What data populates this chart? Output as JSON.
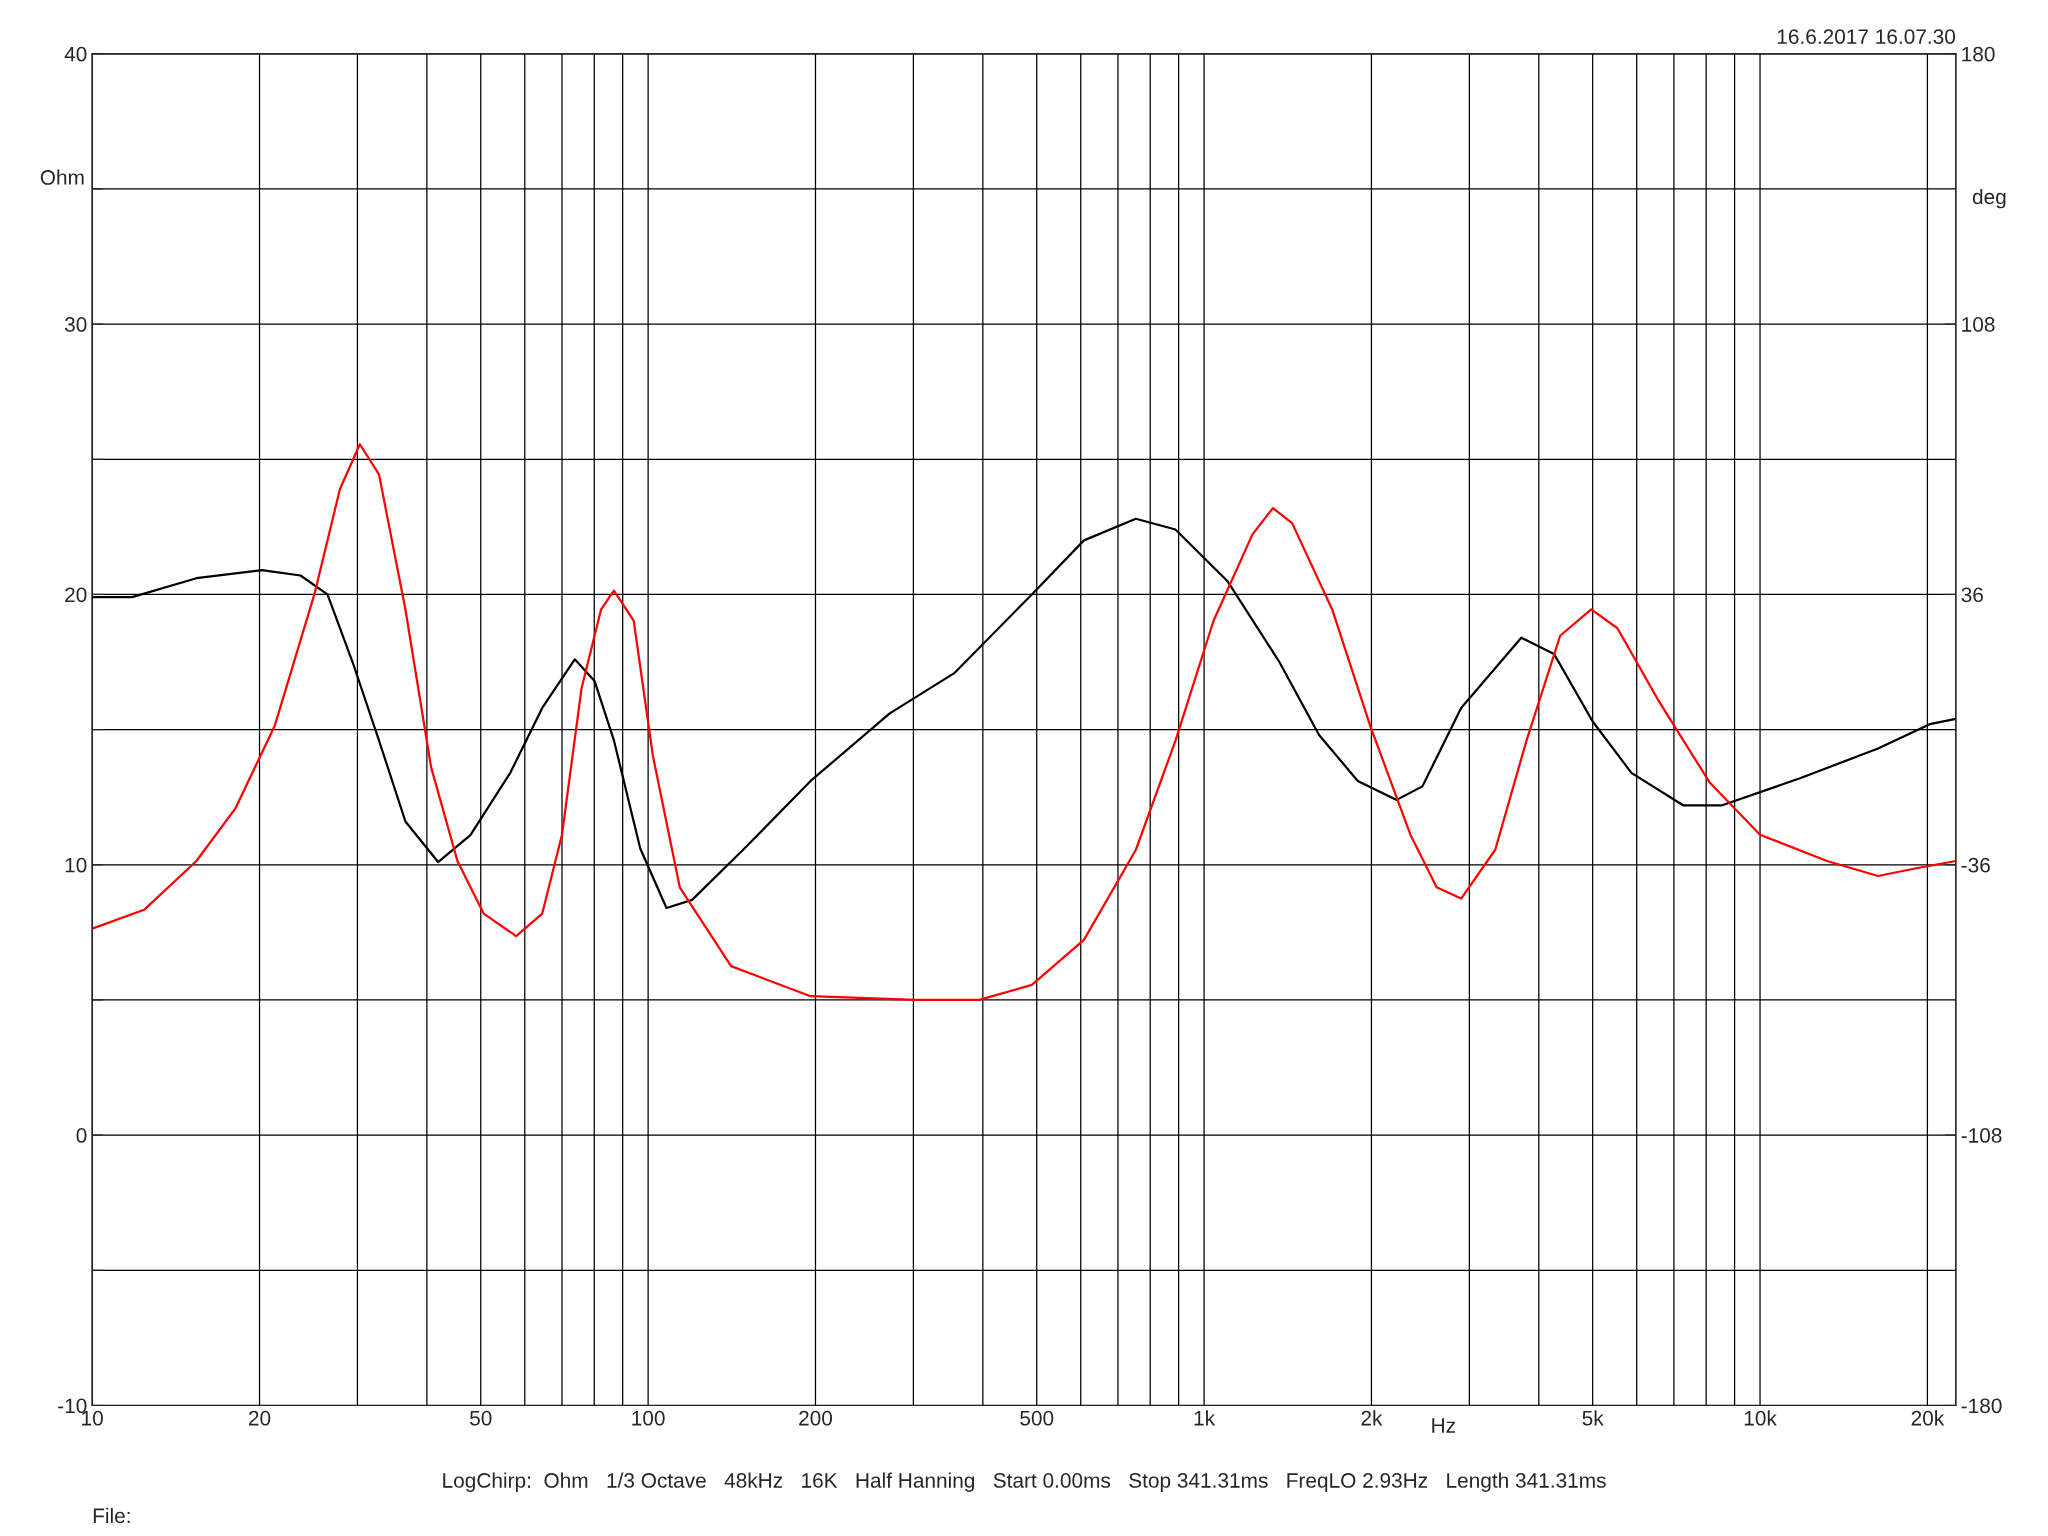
{
  "chart_data": {
    "type": "line",
    "xlabel": "Hz",
    "ylabel": "Ohm",
    "y2label": "deg",
    "annotations": [
      "16.6.2017 16.07.30",
      "LogChirp:  Ohm   1/3 Octave   48kHz   16K   Half Hanning   Start 0.00ms   Stop 341.31ms   FreqLO 2.93Hz   Length 341.31ms",
      "File:"
    ],
    "log": "x",
    "grid": true,
    "legend": false,
    "marker": "none",
    "line_style": "solid",
    "xlim": [
      10,
      22500
    ],
    "xticks": [
      10,
      {
        "value": 20,
        "label": "20"
      },
      {
        "value": 30,
        "label": null
      },
      {
        "value": 40,
        "label": null
      },
      50,
      {
        "value": 60,
        "label": null
      },
      {
        "value": 70,
        "label": null
      },
      {
        "value": 80,
        "label": null
      },
      {
        "value": 90,
        "label": null
      },
      100,
      200,
      {
        "value": 300,
        "label": null
      },
      {
        "value": 400,
        "label": null
      },
      500,
      {
        "value": 600,
        "label": null
      },
      {
        "value": 700,
        "label": null
      },
      {
        "value": 800,
        "label": null
      },
      {
        "value": 900,
        "label": null
      },
      {
        "value": 1000,
        "label": "1k"
      },
      {
        "value": 2000,
        "label": "2k"
      },
      {
        "value": 3000,
        "label": null
      },
      {
        "value": 4000,
        "label": null
      },
      {
        "value": 5000,
        "label": "5k"
      },
      {
        "value": 6000,
        "label": null
      },
      {
        "value": 7000,
        "label": null
      },
      {
        "value": 8000,
        "label": null
      },
      {
        "value": 9000,
        "label": null
      },
      {
        "value": 10000,
        "label": "10k"
      },
      {
        "value": 20000,
        "label": "20k"
      }
    ],
    "ylim": [
      -10,
      40
    ],
    "yticks": [
      -10,
      {
        "value": -5,
        "label": null
      },
      0,
      {
        "value": 5,
        "label": null
      },
      10,
      {
        "value": 15,
        "label": null
      },
      20,
      {
        "value": 25,
        "label": null
      },
      30,
      {
        "value": 35,
        "label": null
      },
      40
    ],
    "y2lim": [
      -180,
      180
    ],
    "y2ticks": [
      -180,
      -108,
      -36,
      36,
      108,
      180
    ],
    "series": [
      {
        "color": "#000000",
        "x": [
          10,
          11.8,
          15.4,
          20.2,
          23.7,
          26.5,
          29.4,
          32.8,
          36.6,
          41.9,
          47.9,
          56.5,
          64.5,
          73.8,
          80.1,
          86.8,
          96.8,
          107.9,
          120,
          149,
          196,
          272,
          356,
          490,
          608,
          754,
          888,
          1101,
          1366,
          1610,
          1890,
          2220,
          2470,
          2900,
          3720,
          4260,
          5000,
          5870,
          7270,
          8550,
          11800,
          16300,
          20200,
          22500
        ],
        "values": [
          19.9,
          19.9,
          20.6,
          20.9,
          20.7,
          20.0,
          17.5,
          14.6,
          11.6,
          10.1,
          11.1,
          13.4,
          15.8,
          17.6,
          16.8,
          14.6,
          10.6,
          8.4,
          8.7,
          10.6,
          13.1,
          15.6,
          17.1,
          20.0,
          22.0,
          22.8,
          22.4,
          20.5,
          17.5,
          14.8,
          13.1,
          12.4,
          12.9,
          15.8,
          18.4,
          17.8,
          15.3,
          13.4,
          12.2,
          12.2,
          13.2,
          14.3,
          15.2,
          15.4
        ]
      },
      {
        "color": "#ff0000",
        "axis": "y2",
        "x": [
          10,
          12.4,
          15.4,
          18.1,
          21.3,
          25.1,
          27.9,
          30.3,
          32.8,
          36.6,
          40.7,
          45.4,
          50.6,
          57.9,
          64.5,
          70.0,
          75.9,
          82.3,
          86.8,
          94.2,
          102,
          114,
          141,
          196,
          302,
          394,
          490,
          608,
          754,
          888,
          1040,
          1222,
          1330,
          1440,
          1700,
          1990,
          2350,
          2620,
          2900,
          3340,
          3800,
          4370,
          4970,
          5540,
          6550,
          8110,
          10000,
          13200,
          16300,
          19000,
          22500
        ],
        "values": [
          -53,
          -48,
          -35,
          -21,
          1,
          36,
          64,
          76,
          68,
          32,
          -10,
          -35,
          -49,
          -55,
          -49,
          -28,
          11,
          32,
          37,
          29,
          -7,
          -42,
          -63,
          -71,
          -72,
          -72,
          -68,
          -56,
          -32,
          -3,
          29,
          52,
          59,
          55,
          32,
          1,
          -28,
          -42,
          -45,
          -32,
          -3,
          25,
          32,
          27,
          8,
          -14,
          -28,
          -35,
          -39,
          -37,
          -35
        ]
      }
    ]
  }
}
